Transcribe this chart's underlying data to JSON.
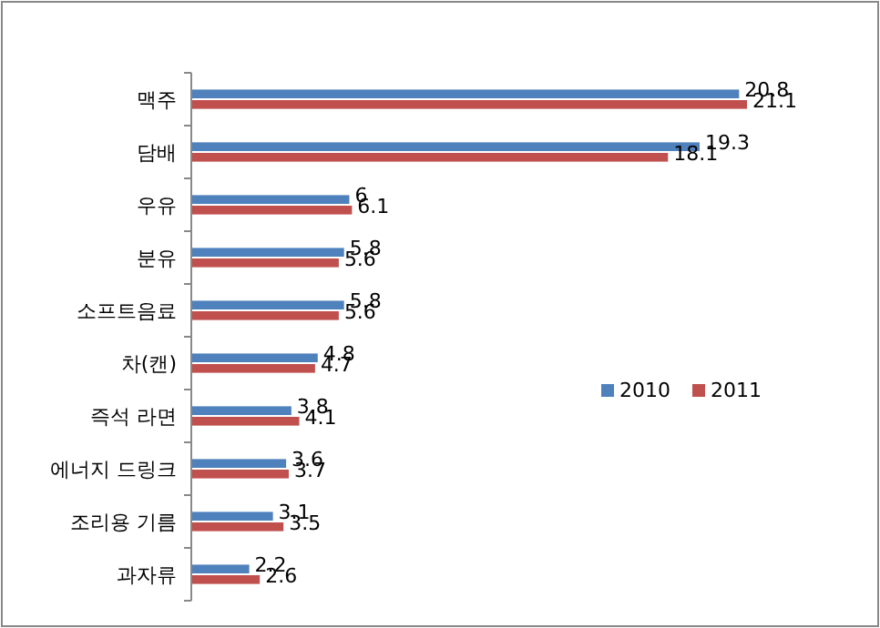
{
  "chart_data": {
    "type": "bar",
    "orientation": "horizontal",
    "data_labels": true,
    "legend": "right",
    "categories": [
      "맥주",
      "담배",
      "우유",
      "분유",
      "소프트음료",
      "차(캔)",
      "즉석 라면",
      "에너지 드링크",
      "조리용 기름",
      "과자류"
    ],
    "series": [
      {
        "name": "2010",
        "color": "#4f81bd",
        "values": [
          20.8,
          19.3,
          6,
          5.8,
          5.8,
          4.8,
          3.8,
          3.6,
          3.1,
          2.2
        ]
      },
      {
        "name": "2011",
        "color": "#c0504d",
        "values": [
          21.1,
          18.1,
          6.1,
          5.6,
          5.6,
          4.7,
          4.1,
          3.7,
          3.5,
          2.6
        ]
      }
    ]
  }
}
